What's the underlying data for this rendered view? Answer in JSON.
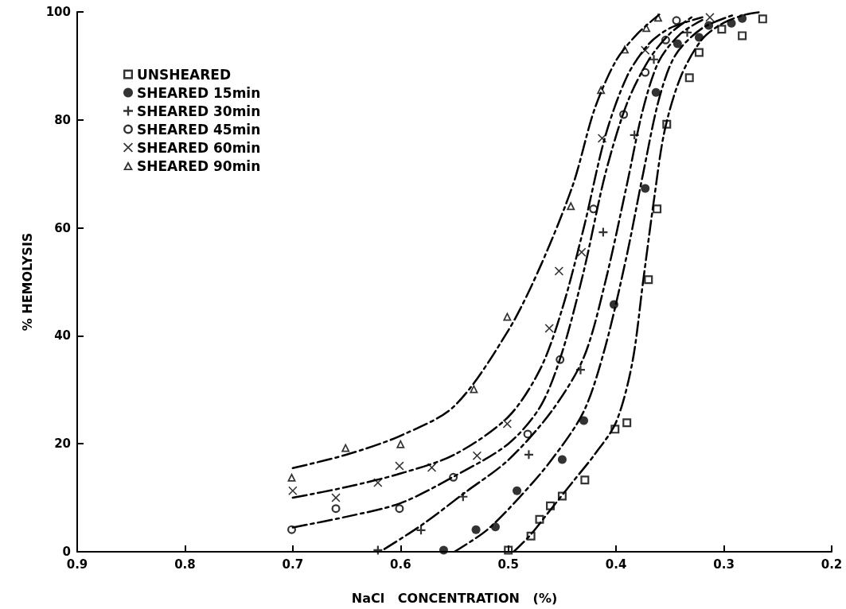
{
  "chart_data": {
    "type": "scatter",
    "xlabel": "NaCl   CONCENTRATION   (%)",
    "ylabel": "% HEMOLYSIS",
    "xlim": [
      0.9,
      0.2
    ],
    "xticks": [
      {
        "value": 0.9,
        "label": "0.9"
      },
      {
        "value": 0.8,
        "label": "0.8"
      },
      {
        "value": 0.7,
        "label": "0.7"
      },
      {
        "value": 0.6,
        "label": "0.6"
      },
      {
        "value": 0.5,
        "label": "0.5"
      },
      {
        "value": 0.4,
        "label": "0.4"
      },
      {
        "value": 0.3,
        "label": "0.3"
      },
      {
        "value": 0.2,
        "label": "0.2"
      }
    ],
    "ylim": [
      0,
      100
    ],
    "yticks": [
      0,
      20,
      40,
      60,
      80,
      100
    ],
    "grid": false,
    "legend": "top left",
    "series": [
      {
        "name": "UNSHEARED",
        "color": "#000000",
        "marker": "square-open",
        "x": [
          0.5,
          0.479,
          0.471,
          0.461,
          0.45,
          0.429,
          0.401,
          0.39,
          0.37,
          0.362,
          0.353,
          0.332,
          0.323,
          0.302,
          0.283,
          0.264
        ],
        "values": [
          0.3,
          2.9,
          6.0,
          8.5,
          10.3,
          13.3,
          22.7,
          23.9,
          50.4,
          63.5,
          79.2,
          87.8,
          92.5,
          96.8,
          95.6,
          98.7
        ]
      },
      {
        "name": "SHEARED 15min",
        "color": "#000000",
        "marker": "circle",
        "x": [
          0.56,
          0.53,
          0.512,
          0.492,
          0.45,
          0.43,
          0.402,
          0.373,
          0.363,
          0.343,
          0.323,
          0.314,
          0.293,
          0.283
        ],
        "values": [
          0.3,
          4.1,
          4.6,
          11.3,
          17.1,
          24.3,
          45.8,
          67.3,
          85.1,
          94.1,
          95.3,
          97.5,
          97.9,
          98.8
        ]
      },
      {
        "name": "SHEARED 30min",
        "color": "#000000",
        "marker": "cross",
        "x": [
          0.621,
          0.581,
          0.542,
          0.481,
          0.433,
          0.412,
          0.383,
          0.365,
          0.334
        ],
        "values": [
          0.3,
          4.0,
          10.2,
          18.0,
          33.7,
          59.2,
          77.2,
          91.2,
          96.2
        ]
      },
      {
        "name": "SHEARED 45min",
        "color": "#000000",
        "marker": "circle-open",
        "x": [
          0.701,
          0.66,
          0.601,
          0.551,
          0.482,
          0.452,
          0.421,
          0.393,
          0.373,
          0.354,
          0.344
        ],
        "values": [
          4.1,
          8.0,
          8.0,
          13.8,
          21.8,
          35.6,
          63.5,
          81.0,
          88.8,
          94.8,
          98.4
        ]
      },
      {
        "name": "SHEARED 60min",
        "color": "#000000",
        "marker": "x",
        "x": [
          0.7,
          0.66,
          0.621,
          0.601,
          0.571,
          0.529,
          0.501,
          0.462,
          0.453,
          0.432,
          0.413,
          0.373,
          0.313
        ],
        "values": [
          11.3,
          10.0,
          12.8,
          15.9,
          15.6,
          17.8,
          23.7,
          41.4,
          52.0,
          55.5,
          76.6,
          92.9,
          99.0
        ]
      },
      {
        "name": "SHEARED 90min",
        "color": "#000000",
        "marker": "triangle-open",
        "x": [
          0.701,
          0.651,
          0.6,
          0.532,
          0.501,
          0.442,
          0.414,
          0.392,
          0.372,
          0.361
        ],
        "values": [
          13.8,
          19.3,
          20.0,
          30.2,
          43.6,
          64.1,
          85.6,
          93.1,
          97.1,
          99.0
        ]
      },
      {
        "type": "line",
        "color": "#000000",
        "marker": "none",
        "line_style": "dashed",
        "x": [
          0.495,
          0.48,
          0.46,
          0.44,
          0.42,
          0.4,
          0.385,
          0.375,
          0.365,
          0.355,
          0.34,
          0.32,
          0.3,
          0.28,
          0.265
        ],
        "values": [
          0,
          3,
          8,
          13,
          18,
          24,
          35,
          50,
          65,
          78,
          88,
          95,
          98,
          99.5,
          100
        ]
      },
      {
        "type": "line",
        "color": "#000000",
        "marker": "none",
        "line_style": "dashed",
        "x": [
          0.55,
          0.52,
          0.49,
          0.46,
          0.43,
          0.41,
          0.39,
          0.375,
          0.36,
          0.345,
          0.32,
          0.29
        ],
        "values": [
          0,
          4,
          10,
          17,
          26,
          38,
          55,
          70,
          84,
          92,
          97,
          99.5
        ]
      },
      {
        "type": "line",
        "color": "#000000",
        "marker": "none",
        "line_style": "dashed",
        "x": [
          0.615,
          0.58,
          0.54,
          0.5,
          0.46,
          0.43,
          0.41,
          0.39,
          0.375,
          0.36,
          0.34,
          0.32
        ],
        "values": [
          0.5,
          5,
          11,
          17,
          26,
          36,
          50,
          68,
          82,
          91,
          96,
          98.5
        ]
      },
      {
        "type": "line",
        "color": "#000000",
        "marker": "none",
        "line_style": "dashed",
        "x": [
          0.7,
          0.65,
          0.6,
          0.55,
          0.5,
          0.47,
          0.45,
          0.43,
          0.41,
          0.39,
          0.37,
          0.35,
          0.33
        ],
        "values": [
          4.5,
          6.5,
          9,
          14,
          20,
          27,
          37,
          52,
          70,
          83,
          91,
          96,
          99
        ]
      },
      {
        "type": "line",
        "color": "#000000",
        "marker": "none",
        "line_style": "dashed",
        "x": [
          0.7,
          0.65,
          0.6,
          0.55,
          0.5,
          0.47,
          0.45,
          0.43,
          0.41,
          0.39,
          0.37,
          0.35,
          0.32
        ],
        "values": [
          10,
          12,
          14.5,
          18,
          25,
          34,
          45,
          60,
          77,
          88,
          94,
          97,
          99
        ]
      },
      {
        "type": "line",
        "color": "#000000",
        "marker": "none",
        "line_style": "dashed",
        "x": [
          0.7,
          0.65,
          0.6,
          0.55,
          0.5,
          0.47,
          0.44,
          0.42,
          0.4,
          0.38,
          0.36
        ],
        "values": [
          15.5,
          18,
          21.5,
          27,
          41,
          53,
          68,
          82,
          91,
          96,
          99.5
        ]
      }
    ]
  }
}
